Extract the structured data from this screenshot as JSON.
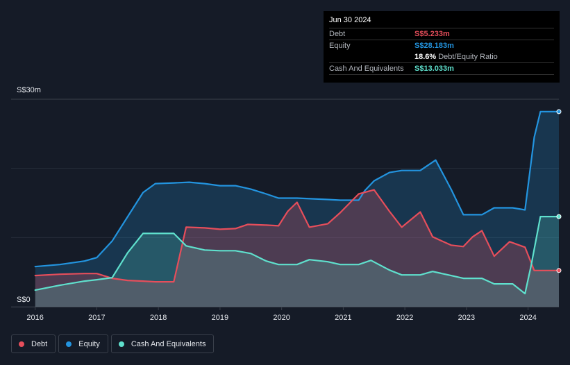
{
  "chart_data": {
    "type": "area",
    "xlim": [
      2015.97,
      2024.5
    ],
    "ylim": [
      0,
      30
    ],
    "x_ticks": [
      "2016",
      "2017",
      "2018",
      "2019",
      "2020",
      "2021",
      "2022",
      "2023",
      "2024"
    ],
    "y_ticks": [
      {
        "label": "S$30m",
        "value": 30
      },
      {
        "label": "S$0",
        "value": 0
      }
    ],
    "grid": true,
    "legend_position": "bottom-left",
    "series": [
      {
        "name": "Equity",
        "color": "#2394df",
        "points": [
          [
            2016.0,
            5.8
          ],
          [
            2016.4,
            6.1
          ],
          [
            2016.8,
            6.6
          ],
          [
            2017.0,
            7.1
          ],
          [
            2017.25,
            9.5
          ],
          [
            2017.5,
            13.0
          ],
          [
            2017.75,
            16.5
          ],
          [
            2017.95,
            17.8
          ],
          [
            2018.25,
            17.9
          ],
          [
            2018.5,
            18.0
          ],
          [
            2018.75,
            17.8
          ],
          [
            2019.0,
            17.5
          ],
          [
            2019.25,
            17.5
          ],
          [
            2019.5,
            17.0
          ],
          [
            2019.75,
            16.3
          ],
          [
            2019.95,
            15.7
          ],
          [
            2020.25,
            15.7
          ],
          [
            2020.5,
            15.6
          ],
          [
            2020.75,
            15.5
          ],
          [
            2020.95,
            15.4
          ],
          [
            2021.25,
            15.4
          ],
          [
            2021.35,
            16.8
          ],
          [
            2021.5,
            18.2
          ],
          [
            2021.75,
            19.4
          ],
          [
            2021.95,
            19.7
          ],
          [
            2022.25,
            19.7
          ],
          [
            2022.5,
            21.2
          ],
          [
            2022.75,
            17.0
          ],
          [
            2022.95,
            13.3
          ],
          [
            2023.25,
            13.3
          ],
          [
            2023.45,
            14.3
          ],
          [
            2023.75,
            14.3
          ],
          [
            2023.95,
            14.0
          ],
          [
            2024.1,
            24.5
          ],
          [
            2024.2,
            28.2
          ],
          [
            2024.5,
            28.2
          ]
        ]
      },
      {
        "name": "Debt",
        "color": "#e64e5b",
        "points": [
          [
            2016.0,
            4.5
          ],
          [
            2016.4,
            4.7
          ],
          [
            2016.8,
            4.8
          ],
          [
            2017.0,
            4.8
          ],
          [
            2017.25,
            4.1
          ],
          [
            2017.5,
            3.8
          ],
          [
            2017.75,
            3.7
          ],
          [
            2017.95,
            3.6
          ],
          [
            2018.25,
            3.6
          ],
          [
            2018.45,
            11.5
          ],
          [
            2018.75,
            11.4
          ],
          [
            2019.0,
            11.2
          ],
          [
            2019.25,
            11.3
          ],
          [
            2019.45,
            11.9
          ],
          [
            2019.75,
            11.8
          ],
          [
            2019.95,
            11.7
          ],
          [
            2020.1,
            13.8
          ],
          [
            2020.25,
            15.1
          ],
          [
            2020.45,
            11.5
          ],
          [
            2020.75,
            12.0
          ],
          [
            2020.95,
            13.6
          ],
          [
            2021.25,
            16.3
          ],
          [
            2021.5,
            16.9
          ],
          [
            2021.75,
            13.8
          ],
          [
            2021.95,
            11.5
          ],
          [
            2022.1,
            12.6
          ],
          [
            2022.25,
            13.7
          ],
          [
            2022.45,
            10.1
          ],
          [
            2022.75,
            8.9
          ],
          [
            2022.95,
            8.7
          ],
          [
            2023.1,
            10.1
          ],
          [
            2023.25,
            11.0
          ],
          [
            2023.45,
            7.3
          ],
          [
            2023.7,
            9.4
          ],
          [
            2023.95,
            8.6
          ],
          [
            2024.1,
            5.233
          ],
          [
            2024.2,
            5.233
          ],
          [
            2024.5,
            5.233
          ]
        ]
      },
      {
        "name": "Cash And Equivalents",
        "color": "#5fe0cd",
        "points": [
          [
            2016.0,
            2.4
          ],
          [
            2016.4,
            3.1
          ],
          [
            2016.8,
            3.7
          ],
          [
            2017.0,
            3.9
          ],
          [
            2017.25,
            4.2
          ],
          [
            2017.5,
            7.8
          ],
          [
            2017.75,
            10.6
          ],
          [
            2017.95,
            10.6
          ],
          [
            2018.25,
            10.6
          ],
          [
            2018.45,
            8.8
          ],
          [
            2018.75,
            8.2
          ],
          [
            2019.0,
            8.1
          ],
          [
            2019.25,
            8.1
          ],
          [
            2019.5,
            7.7
          ],
          [
            2019.75,
            6.6
          ],
          [
            2019.95,
            6.1
          ],
          [
            2020.25,
            6.1
          ],
          [
            2020.45,
            6.8
          ],
          [
            2020.75,
            6.5
          ],
          [
            2020.95,
            6.1
          ],
          [
            2021.25,
            6.1
          ],
          [
            2021.45,
            6.7
          ],
          [
            2021.75,
            5.3
          ],
          [
            2021.95,
            4.6
          ],
          [
            2022.25,
            4.6
          ],
          [
            2022.45,
            5.1
          ],
          [
            2022.75,
            4.5
          ],
          [
            2022.95,
            4.1
          ],
          [
            2023.25,
            4.1
          ],
          [
            2023.45,
            3.3
          ],
          [
            2023.75,
            3.3
          ],
          [
            2023.95,
            1.9
          ],
          [
            2024.05,
            6.0
          ],
          [
            2024.2,
            13.033
          ],
          [
            2024.5,
            13.033
          ]
        ]
      }
    ]
  },
  "tooltip": {
    "date": "Jun 30 2024",
    "rows": [
      {
        "label": "Debt",
        "value": "S$5.233m",
        "color": "#e64e5b"
      },
      {
        "label": "Equity",
        "value": "S$28.183m",
        "color": "#2394df"
      },
      {
        "label": "",
        "value": "18.6%",
        "suffix": "Debt/Equity Ratio",
        "color": "#ffffff"
      },
      {
        "label": "Cash And Equivalents",
        "value": "S$13.033m",
        "color": "#5fe0cd"
      }
    ]
  },
  "legend": [
    {
      "label": "Debt",
      "color": "#e64e5b"
    },
    {
      "label": "Equity",
      "color": "#2394df"
    },
    {
      "label": "Cash And Equivalents",
      "color": "#5fe0cd"
    }
  ]
}
